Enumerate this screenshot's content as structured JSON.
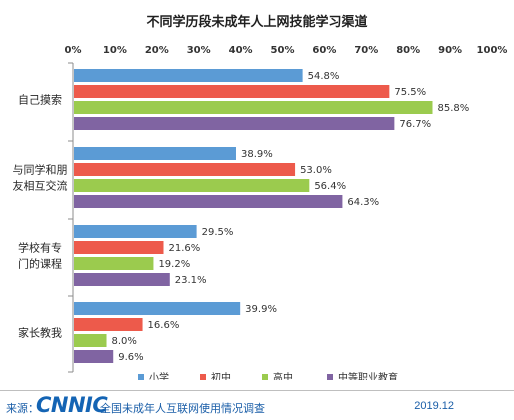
{
  "chart_data": {
    "type": "bar",
    "orientation": "horizontal",
    "title": "不同学历段未成年人上网技能学习渠道",
    "xlim": [
      0,
      100
    ],
    "x_ticks": [
      "0%",
      "10%",
      "20%",
      "30%",
      "40%",
      "50%",
      "60%",
      "70%",
      "80%",
      "90%",
      "100%"
    ],
    "categories": [
      "自己摸索",
      "与同学和朋友相互交流",
      "学校有专门的课程",
      "家长教我"
    ],
    "category_lines": [
      [
        "自己摸索"
      ],
      [
        "与同学和朋",
        "友相互交流"
      ],
      [
        "学校有专",
        "门的课程"
      ],
      [
        "家长教我"
      ]
    ],
    "series": [
      {
        "name": "小学",
        "color": "#5b9bd5",
        "values": [
          54.8,
          38.9,
          29.5,
          39.9
        ],
        "labels": [
          "54.8%",
          "38.9%",
          "29.5%",
          "39.9%"
        ]
      },
      {
        "name": "初中",
        "color": "#ed5a4b",
        "values": [
          75.5,
          53.0,
          21.6,
          16.6
        ],
        "labels": [
          "75.5%",
          "53.0%",
          "21.6%",
          "16.6%"
        ]
      },
      {
        "name": "高中",
        "color": "#9bcb4e",
        "values": [
          85.8,
          56.4,
          19.2,
          8.0
        ],
        "labels": [
          "85.8%",
          "56.4%",
          "19.2%",
          "8.0%"
        ]
      },
      {
        "name": "中等职业教育",
        "color": "#8064a2",
        "values": [
          76.7,
          64.3,
          23.1,
          9.6
        ],
        "labels": [
          "76.7%",
          "64.3%",
          "23.1%",
          "9.6%"
        ]
      }
    ],
    "legend_position": "bottom",
    "grid": false
  },
  "footer": {
    "source_label": "来源：",
    "logo_text": "CNNIC",
    "source_name": "全国未成年人互联网使用情况调查",
    "date": "2019.12"
  }
}
